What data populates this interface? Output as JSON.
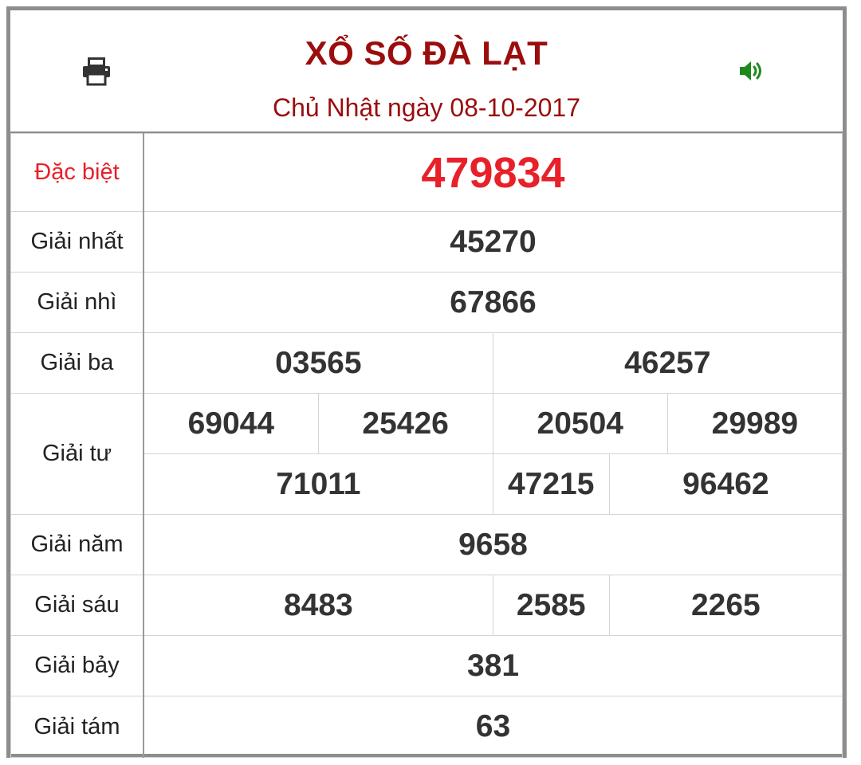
{
  "header": {
    "title": "XỔ SỐ ĐÀ LẠT",
    "subtitle": "Chủ Nhật ngày 08-10-2017",
    "print_icon": "printer-icon",
    "sound_icon": "volume-icon",
    "title_color": "#9b0d0d",
    "sound_color": "#1e8a1e"
  },
  "prizes": {
    "special": {
      "label": "Đặc biệt",
      "numbers": [
        "479834"
      ]
    },
    "first": {
      "label": "Giải nhất",
      "numbers": [
        "45270"
      ]
    },
    "second": {
      "label": "Giải nhì",
      "numbers": [
        "67866"
      ]
    },
    "third": {
      "label": "Giải ba",
      "numbers": [
        "03565",
        "46257"
      ]
    },
    "fourth": {
      "label": "Giải tư",
      "numbers": [
        "69044",
        "25426",
        "20504",
        "29989",
        "71011",
        "47215",
        "96462"
      ]
    },
    "fifth": {
      "label": "Giải năm",
      "numbers": [
        "9658"
      ]
    },
    "sixth": {
      "label": "Giải sáu",
      "numbers": [
        "8483",
        "2585",
        "2265"
      ]
    },
    "seventh": {
      "label": "Giải bảy",
      "numbers": [
        "381"
      ]
    },
    "eighth": {
      "label": "Giải tám",
      "numbers": [
        "63"
      ]
    }
  },
  "colors": {
    "special": "#e8202a",
    "text": "#333333",
    "border": "#8d8d8d"
  }
}
